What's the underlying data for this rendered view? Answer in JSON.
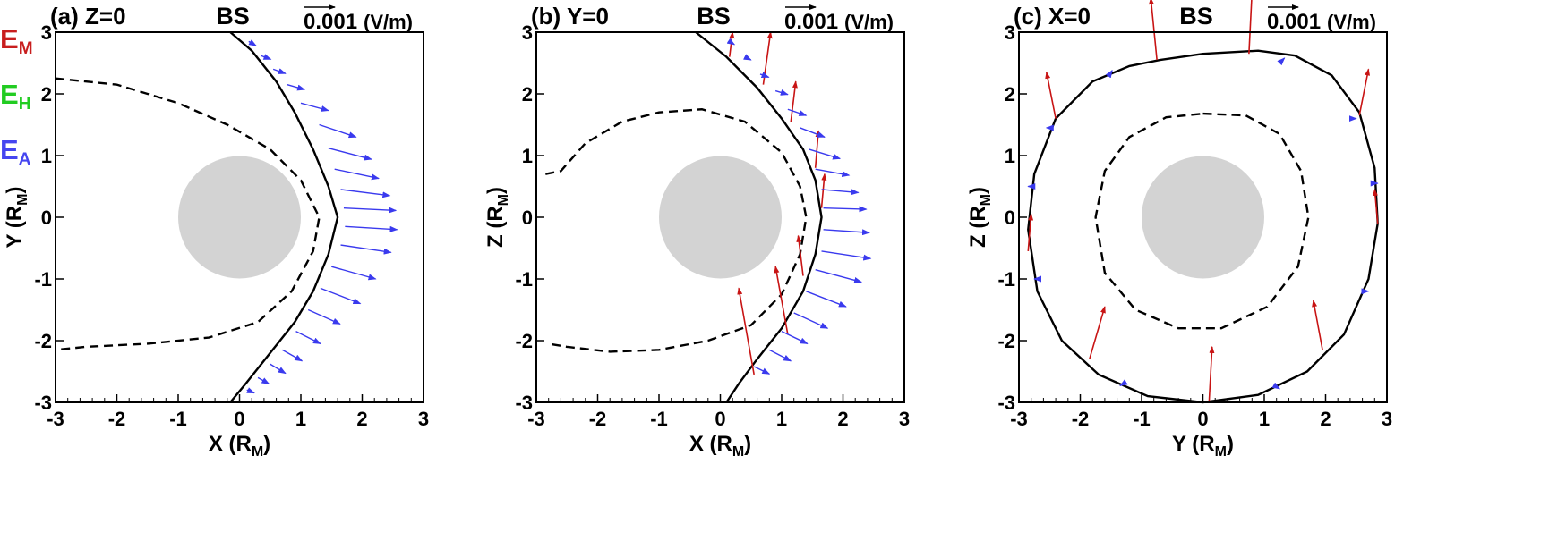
{
  "legend": [
    {
      "symbol": "E",
      "sub": "M",
      "color": "#c81e1e"
    },
    {
      "symbol": "E",
      "sub": "H",
      "color": "#22cc22"
    },
    {
      "symbol": "E",
      "sub": "A",
      "color": "#4545f0"
    }
  ],
  "colors": {
    "em_arrow": "#c81414",
    "ea_arrow": "#3a3aee",
    "planet": "#d3d3d3"
  },
  "chart_data": [
    {
      "type": "vector-field",
      "title": "(a) Z=0",
      "annotation": "BS",
      "reference_vector": {
        "value": "0.001",
        "unit": "(V/m)"
      },
      "xlabel": "X (R",
      "xlabel_sub": "M",
      "ylabel": "Y (R",
      "ylabel_sub": "M",
      "xlim": [
        -3,
        3
      ],
      "ylim": [
        -3,
        3
      ],
      "xticks": [
        "-3",
        "-2",
        "-1",
        "0",
        "1",
        "2",
        "3"
      ],
      "yticks": [
        "-3",
        "-2",
        "-1",
        "0",
        "1",
        "2",
        "3"
      ],
      "planet_radius": 1,
      "bow_shock": [
        [
          -0.15,
          3.0
        ],
        [
          0.2,
          2.7
        ],
        [
          0.6,
          2.2
        ],
        [
          0.9,
          1.7
        ],
        [
          1.2,
          1.1
        ],
        [
          1.45,
          0.5
        ],
        [
          1.6,
          0.0
        ],
        [
          1.45,
          -0.6
        ],
        [
          1.2,
          -1.2
        ],
        [
          0.9,
          -1.7
        ],
        [
          0.5,
          -2.2
        ],
        [
          0.1,
          -2.7
        ],
        [
          -0.15,
          -3.0
        ]
      ],
      "magnetopause": [
        [
          -3.0,
          2.25
        ],
        [
          -2.0,
          2.15
        ],
        [
          -1.0,
          1.85
        ],
        [
          -0.2,
          1.5
        ],
        [
          0.5,
          1.1
        ],
        [
          1.0,
          0.6
        ],
        [
          1.3,
          0.0
        ],
        [
          1.2,
          -0.55
        ],
        [
          0.85,
          -1.2
        ],
        [
          0.3,
          -1.7
        ],
        [
          -0.5,
          -1.95
        ],
        [
          -1.5,
          -2.05
        ],
        [
          -2.5,
          -2.1
        ],
        [
          -3.0,
          -2.15
        ]
      ],
      "vectors": [
        {
          "kind": "EA",
          "x": 0.15,
          "y": 2.85,
          "dx": 0.12,
          "dy": -0.07
        },
        {
          "kind": "EA",
          "x": 0.35,
          "y": 2.62,
          "dx": 0.16,
          "dy": -0.06
        },
        {
          "kind": "EA",
          "x": 0.55,
          "y": 2.4,
          "dx": 0.2,
          "dy": -0.07
        },
        {
          "kind": "EA",
          "x": 0.78,
          "y": 2.15,
          "dx": 0.28,
          "dy": -0.08
        },
        {
          "kind": "EA",
          "x": 1.0,
          "y": 1.85,
          "dx": 0.45,
          "dy": -0.12
        },
        {
          "kind": "EA",
          "x": 1.3,
          "y": 1.5,
          "dx": 0.6,
          "dy": -0.2
        },
        {
          "kind": "EA",
          "x": 1.45,
          "y": 1.12,
          "dx": 0.7,
          "dy": -0.18
        },
        {
          "kind": "EA",
          "x": 1.55,
          "y": 0.78,
          "dx": 0.72,
          "dy": -0.15
        },
        {
          "kind": "EA",
          "x": 1.65,
          "y": 0.45,
          "dx": 0.8,
          "dy": -0.1
        },
        {
          "kind": "EA",
          "x": 1.7,
          "y": 0.15,
          "dx": 0.85,
          "dy": -0.04
        },
        {
          "kind": "EA",
          "x": 1.72,
          "y": -0.15,
          "dx": 0.85,
          "dy": -0.05
        },
        {
          "kind": "EA",
          "x": 1.65,
          "y": -0.45,
          "dx": 0.82,
          "dy": -0.12
        },
        {
          "kind": "EA",
          "x": 1.5,
          "y": -0.8,
          "dx": 0.72,
          "dy": -0.2
        },
        {
          "kind": "EA",
          "x": 1.32,
          "y": -1.15,
          "dx": 0.65,
          "dy": -0.25
        },
        {
          "kind": "EA",
          "x": 1.12,
          "y": -1.5,
          "dx": 0.52,
          "dy": -0.23
        },
        {
          "kind": "EA",
          "x": 0.92,
          "y": -1.85,
          "dx": 0.4,
          "dy": -0.2
        },
        {
          "kind": "EA",
          "x": 0.7,
          "y": -2.15,
          "dx": 0.32,
          "dy": -0.18
        },
        {
          "kind": "EA",
          "x": 0.5,
          "y": -2.38,
          "dx": 0.25,
          "dy": -0.15
        },
        {
          "kind": "EA",
          "x": 0.3,
          "y": -2.6,
          "dx": 0.18,
          "dy": -0.1
        },
        {
          "kind": "EA",
          "x": 0.12,
          "y": -2.8,
          "dx": 0.12,
          "dy": -0.05
        }
      ]
    },
    {
      "type": "vector-field",
      "title": "(b) Y=0",
      "annotation": "BS",
      "reference_vector": {
        "value": "0.001",
        "unit": "(V/m)"
      },
      "xlabel": "X (R",
      "xlabel_sub": "M",
      "ylabel": "Z (R",
      "ylabel_sub": "M",
      "xlim": [
        -3,
        3
      ],
      "ylim": [
        -3,
        3
      ],
      "xticks": [
        "-3",
        "-2",
        "-1",
        "0",
        "1",
        "2",
        "3"
      ],
      "yticks": [
        "-3",
        "-2",
        "-1",
        "0",
        "1",
        "2",
        "3"
      ],
      "planet_radius": 1,
      "bow_shock": [
        [
          -0.4,
          3.0
        ],
        [
          0.1,
          2.6
        ],
        [
          0.6,
          2.1
        ],
        [
          1.0,
          1.6
        ],
        [
          1.35,
          1.1
        ],
        [
          1.55,
          0.6
        ],
        [
          1.65,
          0.0
        ],
        [
          1.55,
          -0.6
        ],
        [
          1.35,
          -1.2
        ],
        [
          1.0,
          -1.8
        ],
        [
          0.6,
          -2.3
        ],
        [
          0.3,
          -2.7
        ],
        [
          0.1,
          -3.0
        ]
      ],
      "magnetopause": [
        [
          -2.85,
          0.7
        ],
        [
          -2.6,
          0.75
        ],
        [
          -2.2,
          1.2
        ],
        [
          -1.6,
          1.55
        ],
        [
          -1.0,
          1.7
        ],
        [
          -0.3,
          1.75
        ],
        [
          0.4,
          1.55
        ],
        [
          1.0,
          1.05
        ],
        [
          1.3,
          0.5
        ],
        [
          1.4,
          0.0
        ],
        [
          1.3,
          -0.6
        ],
        [
          1.0,
          -1.25
        ],
        [
          0.5,
          -1.75
        ],
        [
          -0.2,
          -2.0
        ],
        [
          -1.0,
          -2.15
        ],
        [
          -1.8,
          -2.18
        ],
        [
          -2.5,
          -2.1
        ],
        [
          -2.8,
          -2.05
        ]
      ],
      "vectors": [
        {
          "kind": "EM",
          "x": 0.15,
          "y": 2.6,
          "dx": 0.05,
          "dy": 0.4
        },
        {
          "kind": "EM",
          "x": 0.7,
          "y": 2.15,
          "dx": 0.12,
          "dy": 0.85
        },
        {
          "kind": "EM",
          "x": 1.15,
          "y": 1.55,
          "dx": 0.08,
          "dy": 0.65
        },
        {
          "kind": "EM",
          "x": 1.55,
          "y": 0.8,
          "dx": 0.05,
          "dy": 0.6
        },
        {
          "kind": "EM",
          "x": 1.65,
          "y": 0.15,
          "dx": 0.05,
          "dy": 0.55
        },
        {
          "kind": "EM",
          "x": 1.35,
          "y": -0.95,
          "dx": -0.08,
          "dy": 0.65
        },
        {
          "kind": "EM",
          "x": 1.1,
          "y": -1.9,
          "dx": -0.2,
          "dy": 1.1
        },
        {
          "kind": "EM",
          "x": 0.55,
          "y": -2.55,
          "dx": -0.25,
          "dy": 1.4
        },
        {
          "kind": "EA",
          "x": 0.15,
          "y": 2.85,
          "dx": 0.08,
          "dy": -0.05
        },
        {
          "kind": "EA",
          "x": 0.4,
          "y": 2.6,
          "dx": 0.1,
          "dy": -0.05
        },
        {
          "kind": "EA",
          "x": 0.65,
          "y": 2.32,
          "dx": 0.14,
          "dy": -0.05
        },
        {
          "kind": "EA",
          "x": 0.9,
          "y": 2.05,
          "dx": 0.2,
          "dy": -0.06
        },
        {
          "kind": "EA",
          "x": 1.1,
          "y": 1.75,
          "dx": 0.3,
          "dy": -0.1
        },
        {
          "kind": "EA",
          "x": 1.3,
          "y": 1.45,
          "dx": 0.4,
          "dy": -0.15
        },
        {
          "kind": "EA",
          "x": 1.45,
          "y": 1.1,
          "dx": 0.5,
          "dy": -0.15
        },
        {
          "kind": "EA",
          "x": 1.55,
          "y": 0.78,
          "dx": 0.55,
          "dy": -0.1
        },
        {
          "kind": "EA",
          "x": 1.65,
          "y": 0.45,
          "dx": 0.6,
          "dy": -0.05
        },
        {
          "kind": "EA",
          "x": 1.68,
          "y": 0.15,
          "dx": 0.7,
          "dy": -0.02
        },
        {
          "kind": "EA",
          "x": 1.68,
          "y": -0.2,
          "dx": 0.75,
          "dy": -0.05
        },
        {
          "kind": "EA",
          "x": 1.65,
          "y": -0.55,
          "dx": 0.8,
          "dy": -0.12
        },
        {
          "kind": "EA",
          "x": 1.55,
          "y": -0.85,
          "dx": 0.75,
          "dy": -0.2
        },
        {
          "kind": "EA",
          "x": 1.4,
          "y": -1.2,
          "dx": 0.65,
          "dy": -0.25
        },
        {
          "kind": "EA",
          "x": 1.2,
          "y": -1.55,
          "dx": 0.55,
          "dy": -0.25
        },
        {
          "kind": "EA",
          "x": 1.0,
          "y": -1.85,
          "dx": 0.42,
          "dy": -0.2
        },
        {
          "kind": "EA",
          "x": 0.8,
          "y": -2.15,
          "dx": 0.35,
          "dy": -0.18
        },
        {
          "kind": "EA",
          "x": 0.55,
          "y": -2.42,
          "dx": 0.25,
          "dy": -0.12
        }
      ]
    },
    {
      "type": "vector-field",
      "title": "(c) X=0",
      "annotation": "BS",
      "reference_vector": {
        "value": "0.001",
        "unit": "(V/m)"
      },
      "xlabel": "Y (R",
      "xlabel_sub": "M",
      "ylabel": "Z (R",
      "ylabel_sub": "M",
      "xlim": [
        -3,
        3
      ],
      "ylim": [
        -3,
        3
      ],
      "xticks": [
        "-3",
        "-2",
        "-1",
        "0",
        "1",
        "2",
        "3"
      ],
      "yticks": [
        "-3",
        "-2",
        "-1",
        "0",
        "1",
        "2",
        "3"
      ],
      "planet_radius": 1,
      "bow_shock": [
        [
          -0.7,
          2.55
        ],
        [
          0.0,
          2.65
        ],
        [
          0.9,
          2.7
        ],
        [
          1.5,
          2.62
        ],
        [
          2.1,
          2.3
        ],
        [
          2.55,
          1.7
        ],
        [
          2.8,
          0.8
        ],
        [
          2.85,
          -0.1
        ],
        [
          2.7,
          -1.0
        ],
        [
          2.3,
          -1.9
        ],
        [
          1.7,
          -2.5
        ],
        [
          0.9,
          -2.88
        ],
        [
          0.0,
          -3.0
        ],
        [
          -0.9,
          -2.9
        ],
        [
          -1.7,
          -2.55
        ],
        [
          -2.3,
          -2.0
        ],
        [
          -2.7,
          -1.2
        ],
        [
          -2.85,
          -0.2
        ],
        [
          -2.75,
          0.7
        ],
        [
          -2.4,
          1.6
        ],
        [
          -1.8,
          2.2
        ],
        [
          -1.2,
          2.45
        ],
        [
          -0.7,
          2.55
        ]
      ],
      "magnetopause": [
        [
          0.0,
          1.68
        ],
        [
          0.7,
          1.65
        ],
        [
          1.25,
          1.35
        ],
        [
          1.6,
          0.75
        ],
        [
          1.72,
          0.0
        ],
        [
          1.55,
          -0.8
        ],
        [
          1.05,
          -1.45
        ],
        [
          0.3,
          -1.8
        ],
        [
          -0.4,
          -1.8
        ],
        [
          -1.1,
          -1.5
        ],
        [
          -1.6,
          -0.9
        ],
        [
          -1.75,
          0.0
        ],
        [
          -1.6,
          0.75
        ],
        [
          -1.2,
          1.3
        ],
        [
          -0.6,
          1.62
        ],
        [
          0.0,
          1.68
        ]
      ],
      "vectors": [
        {
          "kind": "EM",
          "x": -0.75,
          "y": 2.55,
          "dx": -0.1,
          "dy": 1.0
        },
        {
          "kind": "EM",
          "x": 0.75,
          "y": 2.65,
          "dx": 0.05,
          "dy": 1.0
        },
        {
          "kind": "EM",
          "x": -2.4,
          "y": 1.6,
          "dx": -0.15,
          "dy": 0.75
        },
        {
          "kind": "EM",
          "x": 2.55,
          "y": 1.65,
          "dx": 0.15,
          "dy": 0.75
        },
        {
          "kind": "EM",
          "x": -2.85,
          "y": -0.55,
          "dx": 0.05,
          "dy": 0.6
        },
        {
          "kind": "EM",
          "x": 2.85,
          "y": -0.1,
          "dx": -0.05,
          "dy": 0.55
        },
        {
          "kind": "EM",
          "x": -1.85,
          "y": -2.3,
          "dx": 0.25,
          "dy": 0.85
        },
        {
          "kind": "EM",
          "x": 1.95,
          "y": -2.15,
          "dx": -0.15,
          "dy": 0.8
        },
        {
          "kind": "EM",
          "x": 0.1,
          "y": -3.0,
          "dx": 0.05,
          "dy": 0.9
        },
        {
          "kind": "EA",
          "x": -2.5,
          "y": 1.45,
          "dx": -0.05,
          "dy": 0.0
        },
        {
          "kind": "EA",
          "x": 2.45,
          "y": 1.6,
          "dx": 0.05,
          "dy": 0.0
        },
        {
          "kind": "EA",
          "x": -1.5,
          "y": 2.35,
          "dx": 0.02,
          "dy": 0.03
        },
        {
          "kind": "EA",
          "x": 1.3,
          "y": 2.55,
          "dx": 0.03,
          "dy": 0.03
        },
        {
          "kind": "EA",
          "x": -2.8,
          "y": 0.5,
          "dx": -0.05,
          "dy": 0.0
        },
        {
          "kind": "EA",
          "x": 2.8,
          "y": 0.55,
          "dx": 0.05,
          "dy": 0.0
        },
        {
          "kind": "EA",
          "x": -2.7,
          "y": -1.0,
          "dx": -0.05,
          "dy": 0.0
        },
        {
          "kind": "EA",
          "x": 2.65,
          "y": -1.2,
          "dx": 0.05,
          "dy": 0.0
        },
        {
          "kind": "EA",
          "x": -1.3,
          "y": -2.7,
          "dx": -0.05,
          "dy": -0.03
        },
        {
          "kind": "EA",
          "x": 1.2,
          "y": -2.75,
          "dx": 0.05,
          "dy": -0.03
        }
      ]
    }
  ]
}
